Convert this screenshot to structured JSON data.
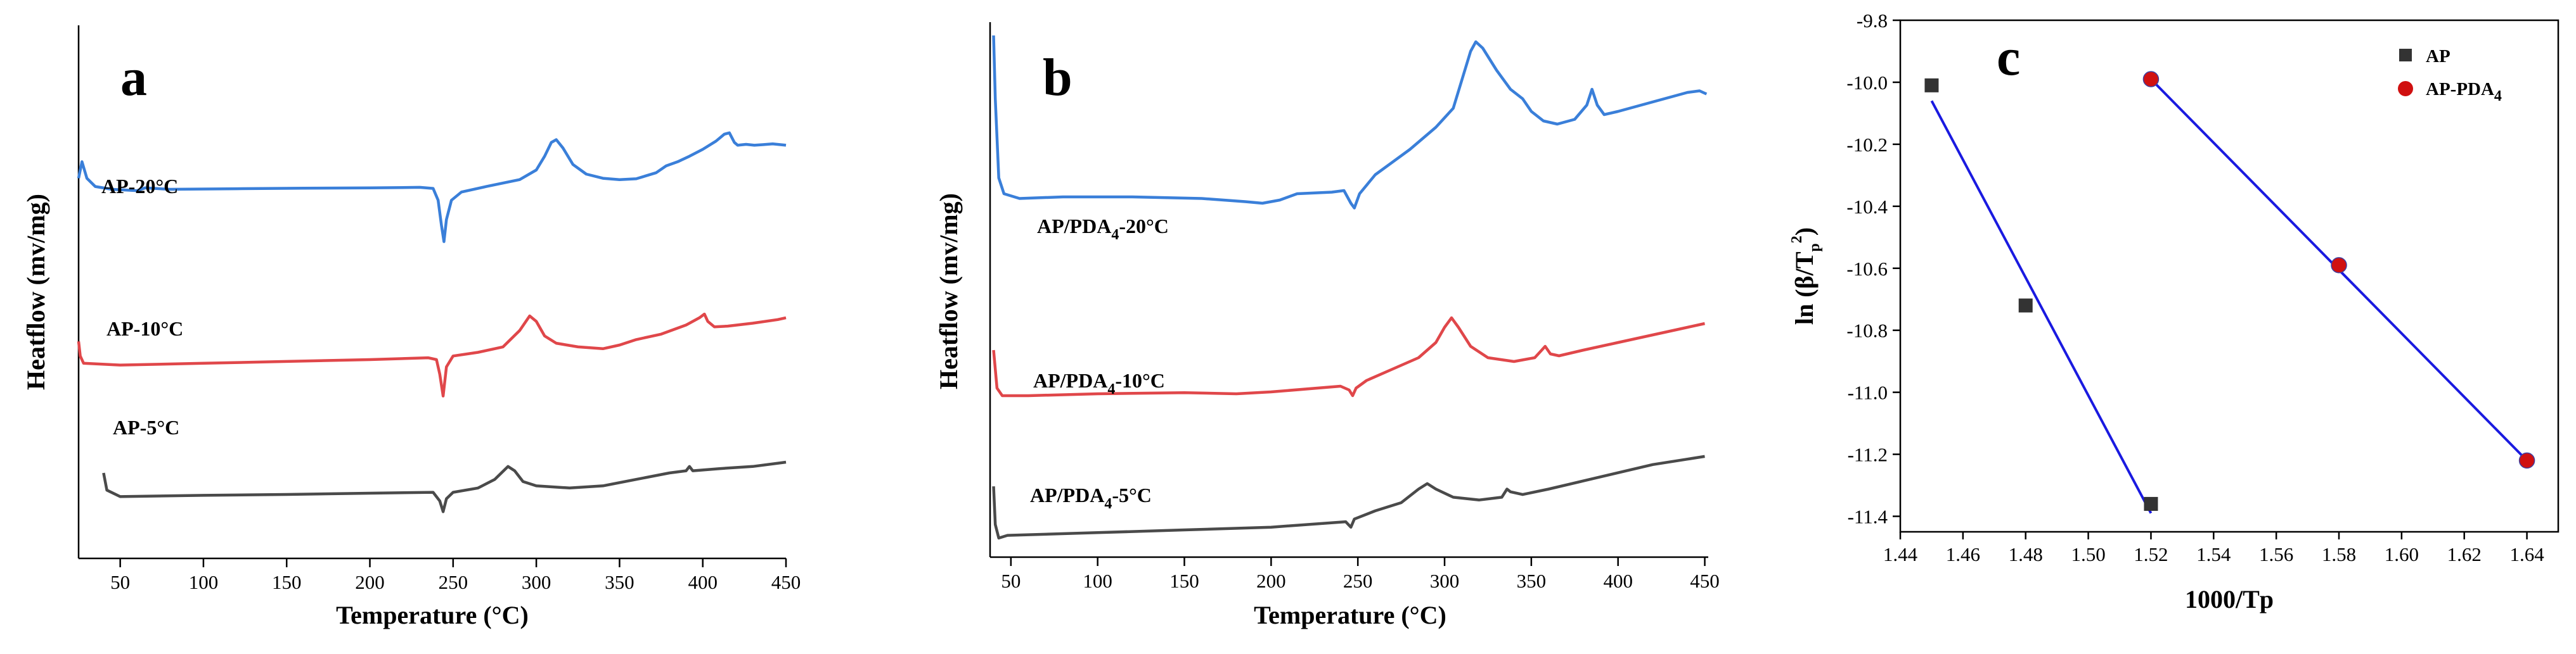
{
  "chart_data": [
    {
      "type": "line",
      "panel_label": "a",
      "xlabel": "Temperature (°C)",
      "ylabel": "Heatflow (mv/mg)",
      "x_ticks": [
        50,
        100,
        150,
        200,
        250,
        300,
        350,
        400,
        450
      ],
      "xlim": [
        25,
        450
      ],
      "y_axis_ticks_labeled": false,
      "series": [
        {
          "name": "AP-20°C",
          "label": "AP-20°C",
          "color": "#3a7fd9",
          "points": [
            [
              25,
              0.87
            ],
            [
              27,
              0.93
            ],
            [
              30,
              0.87
            ],
            [
              35,
              0.84
            ],
            [
              45,
              0.83
            ],
            [
              60,
              0.825
            ],
            [
              65,
              0.835
            ],
            [
              80,
              0.83
            ],
            [
              120,
              0.832
            ],
            [
              160,
              0.834
            ],
            [
              200,
              0.835
            ],
            [
              230,
              0.837
            ],
            [
              238,
              0.833
            ],
            [
              241,
              0.79
            ],
            [
              243,
              0.7
            ],
            [
              244.5,
              0.64
            ],
            [
              246,
              0.72
            ],
            [
              249,
              0.79
            ],
            [
              255,
              0.82
            ],
            [
              270,
              0.84
            ],
            [
              290,
              0.865
            ],
            [
              300,
              0.9
            ],
            [
              305,
              0.95
            ],
            [
              309,
              1.0
            ],
            [
              312,
              1.01
            ],
            [
              316,
              0.98
            ],
            [
              322,
              0.92
            ],
            [
              330,
              0.885
            ],
            [
              340,
              0.87
            ],
            [
              350,
              0.865
            ],
            [
              360,
              0.868
            ],
            [
              372,
              0.89
            ],
            [
              378,
              0.915
            ],
            [
              385,
              0.93
            ],
            [
              392,
              0.95
            ],
            [
              400,
              0.975
            ],
            [
              408,
              1.005
            ],
            [
              413,
              1.03
            ],
            [
              416,
              1.035
            ],
            [
              419,
              1.0
            ],
            [
              421,
              0.99
            ],
            [
              426,
              0.993
            ],
            [
              431,
              0.99
            ],
            [
              436,
              0.992
            ],
            [
              442,
              0.995
            ],
            [
              450,
              0.99
            ]
          ]
        },
        {
          "name": "AP-10°C",
          "label": "AP-10°C",
          "color": "#e0474a",
          "points": [
            [
              25,
              0.49
            ],
            [
              26,
              0.45
            ],
            [
              28,
              0.43
            ],
            [
              50,
              0.425
            ],
            [
              100,
              0.43
            ],
            [
              150,
              0.435
            ],
            [
              200,
              0.44
            ],
            [
              235,
              0.445
            ],
            [
              240,
              0.44
            ],
            [
              242,
              0.4
            ],
            [
              244,
              0.34
            ],
            [
              246,
              0.42
            ],
            [
              250,
              0.45
            ],
            [
              265,
              0.46
            ],
            [
              280,
              0.475
            ],
            [
              290,
              0.52
            ],
            [
              296,
              0.56
            ],
            [
              300,
              0.545
            ],
            [
              305,
              0.505
            ],
            [
              312,
              0.485
            ],
            [
              325,
              0.475
            ],
            [
              340,
              0.47
            ],
            [
              350,
              0.48
            ],
            [
              360,
              0.495
            ],
            [
              375,
              0.51
            ],
            [
              390,
              0.535
            ],
            [
              398,
              0.555
            ],
            [
              401,
              0.565
            ],
            [
              403,
              0.545
            ],
            [
              407,
              0.53
            ],
            [
              415,
              0.532
            ],
            [
              430,
              0.54
            ],
            [
              445,
              0.55
            ],
            [
              450,
              0.555
            ]
          ]
        },
        {
          "name": "AP-5°C",
          "label": "AP-5°C",
          "color": "#4a4a4a",
          "points": [
            [
              40,
              0.175
            ],
            [
              42,
              0.135
            ],
            [
              50,
              0.12
            ],
            [
              100,
              0.123
            ],
            [
              150,
              0.125
            ],
            [
              200,
              0.128
            ],
            [
              238,
              0.13
            ],
            [
              242,
              0.11
            ],
            [
              244,
              0.085
            ],
            [
              246,
              0.115
            ],
            [
              250,
              0.13
            ],
            [
              265,
              0.14
            ],
            [
              275,
              0.16
            ],
            [
              283,
              0.19
            ],
            [
              287,
              0.18
            ],
            [
              292,
              0.155
            ],
            [
              300,
              0.145
            ],
            [
              320,
              0.14
            ],
            [
              340,
              0.145
            ],
            [
              360,
              0.16
            ],
            [
              380,
              0.175
            ],
            [
              390,
              0.18
            ],
            [
              392,
              0.19
            ],
            [
              394,
              0.18
            ],
            [
              410,
              0.185
            ],
            [
              430,
              0.19
            ],
            [
              450,
              0.2
            ]
          ]
        }
      ]
    },
    {
      "type": "line",
      "panel_label": "b",
      "xlabel": "Temperature (°C)",
      "ylabel": "Heatflow (mv/mg)",
      "x_ticks": [
        50,
        100,
        150,
        200,
        250,
        300,
        350,
        400,
        450
      ],
      "xlim": [
        38,
        452
      ],
      "y_axis_ticks_labeled": false,
      "series": [
        {
          "name": "AP/PDA4-20°C",
          "label_main": "AP/PDA",
          "label_sub": "4",
          "label_rest": "-20°C",
          "color": "#3a7fd9",
          "points": [
            [
              40,
              1.0
            ],
            [
              41,
              0.8
            ],
            [
              43,
              0.55
            ],
            [
              46,
              0.5
            ],
            [
              55,
              0.485
            ],
            [
              80,
              0.49
            ],
            [
              120,
              0.49
            ],
            [
              160,
              0.485
            ],
            [
              185,
              0.475
            ],
            [
              195,
              0.47
            ],
            [
              205,
              0.48
            ],
            [
              215,
              0.5
            ],
            [
              235,
              0.505
            ],
            [
              242,
              0.51
            ],
            [
              246,
              0.47
            ],
            [
              248,
              0.455
            ],
            [
              251,
              0.5
            ],
            [
              260,
              0.56
            ],
            [
              280,
              0.64
            ],
            [
              295,
              0.71
            ],
            [
              305,
              0.77
            ],
            [
              310,
              0.86
            ],
            [
              315,
              0.95
            ],
            [
              318,
              0.98
            ],
            [
              322,
              0.96
            ],
            [
              330,
              0.89
            ],
            [
              338,
              0.83
            ],
            [
              345,
              0.8
            ],
            [
              350,
              0.76
            ],
            [
              357,
              0.73
            ],
            [
              365,
              0.72
            ],
            [
              375,
              0.735
            ],
            [
              382,
              0.78
            ],
            [
              385,
              0.83
            ],
            [
              388,
              0.78
            ],
            [
              392,
              0.75
            ],
            [
              400,
              0.76
            ],
            [
              420,
              0.79
            ],
            [
              440,
              0.82
            ],
            [
              447,
              0.825
            ],
            [
              451,
              0.815
            ]
          ]
        },
        {
          "name": "AP/PDA4-10°C",
          "label_main": "AP/PDA",
          "label_sub": "4",
          "label_rest": "-10°C",
          "color": "#e0474a",
          "points": [
            [
              40,
              0.32
            ],
            [
              42,
              0.22
            ],
            [
              45,
              0.2
            ],
            [
              60,
              0.2
            ],
            [
              100,
              0.205
            ],
            [
              150,
              0.208
            ],
            [
              180,
              0.205
            ],
            [
              200,
              0.21
            ],
            [
              240,
              0.225
            ],
            [
              245,
              0.215
            ],
            [
              247,
              0.2
            ],
            [
              249,
              0.22
            ],
            [
              255,
              0.24
            ],
            [
              270,
              0.27
            ],
            [
              285,
              0.3
            ],
            [
              295,
              0.34
            ],
            [
              300,
              0.38
            ],
            [
              304,
              0.405
            ],
            [
              308,
              0.38
            ],
            [
              315,
              0.33
            ],
            [
              325,
              0.3
            ],
            [
              340,
              0.29
            ],
            [
              352,
              0.3
            ],
            [
              356,
              0.32
            ],
            [
              358,
              0.33
            ],
            [
              361,
              0.31
            ],
            [
              366,
              0.305
            ],
            [
              380,
              0.32
            ],
            [
              400,
              0.34
            ],
            [
              420,
              0.36
            ],
            [
              440,
              0.38
            ],
            [
              450,
              0.39
            ]
          ]
        },
        {
          "name": "AP/PDA4-5°C",
          "label_main": "AP/PDA",
          "label_sub": "4",
          "label_rest": "-5°C",
          "color": "#4a4a4a",
          "points": [
            [
              40,
              0.13
            ],
            [
              41,
              0.06
            ],
            [
              43,
              0.035
            ],
            [
              48,
              0.04
            ],
            [
              100,
              0.045
            ],
            [
              150,
              0.05
            ],
            [
              200,
              0.055
            ],
            [
              243,
              0.065
            ],
            [
              246,
              0.055
            ],
            [
              248,
              0.07
            ],
            [
              260,
              0.085
            ],
            [
              275,
              0.1
            ],
            [
              285,
              0.125
            ],
            [
              290,
              0.135
            ],
            [
              295,
              0.125
            ],
            [
              305,
              0.11
            ],
            [
              320,
              0.105
            ],
            [
              333,
              0.11
            ],
            [
              336,
              0.125
            ],
            [
              338,
              0.12
            ],
            [
              345,
              0.115
            ],
            [
              360,
              0.125
            ],
            [
              380,
              0.14
            ],
            [
              400,
              0.155
            ],
            [
              420,
              0.17
            ],
            [
              440,
              0.18
            ],
            [
              450,
              0.185
            ]
          ]
        }
      ]
    },
    {
      "type": "scatter",
      "panel_label": "c",
      "xlabel": "1000/Tp",
      "ylabel": "ln (β/Tp²)",
      "xlim": [
        1.44,
        1.65
      ],
      "ylim": [
        -11.45,
        -9.8
      ],
      "x_ticks": [
        "1.44",
        "1.46",
        "1.48",
        "1.50",
        "1.52",
        "1.54",
        "1.56",
        "1.58",
        "1.60",
        "1.62",
        "1.64"
      ],
      "y_ticks": [
        "-9.8",
        "-10.0",
        "-10.2",
        "-10.4",
        "-10.6",
        "-10.8",
        "-11.0",
        "-11.2",
        "-11.4"
      ],
      "legend_placement": "top-right",
      "series": [
        {
          "name": "AP",
          "marker": "square",
          "color": "#333333",
          "x": [
            1.45,
            1.48,
            1.52
          ],
          "y": [
            -10.01,
            -10.72,
            -11.36
          ],
          "fit_line": [
            [
              1.45,
              -10.06
            ],
            [
              1.52,
              -11.39
            ]
          ],
          "fit_color": "#1a1ae0"
        },
        {
          "name": "AP-PDA4",
          "legend_main": "AP-PDA",
          "legend_sub": "4",
          "marker": "circle",
          "color": "#d01010",
          "x": [
            1.52,
            1.58,
            1.64
          ],
          "y": [
            -9.99,
            -10.59,
            -11.22
          ],
          "fit_line": [
            [
              1.52,
              -9.99
            ],
            [
              1.64,
              -11.22
            ]
          ],
          "fit_color": "#1a1ae0"
        }
      ]
    }
  ],
  "ylabel_c_parts": {
    "main": "ln (β/T",
    "sub": "p",
    "sup": "2",
    "close": ")"
  }
}
